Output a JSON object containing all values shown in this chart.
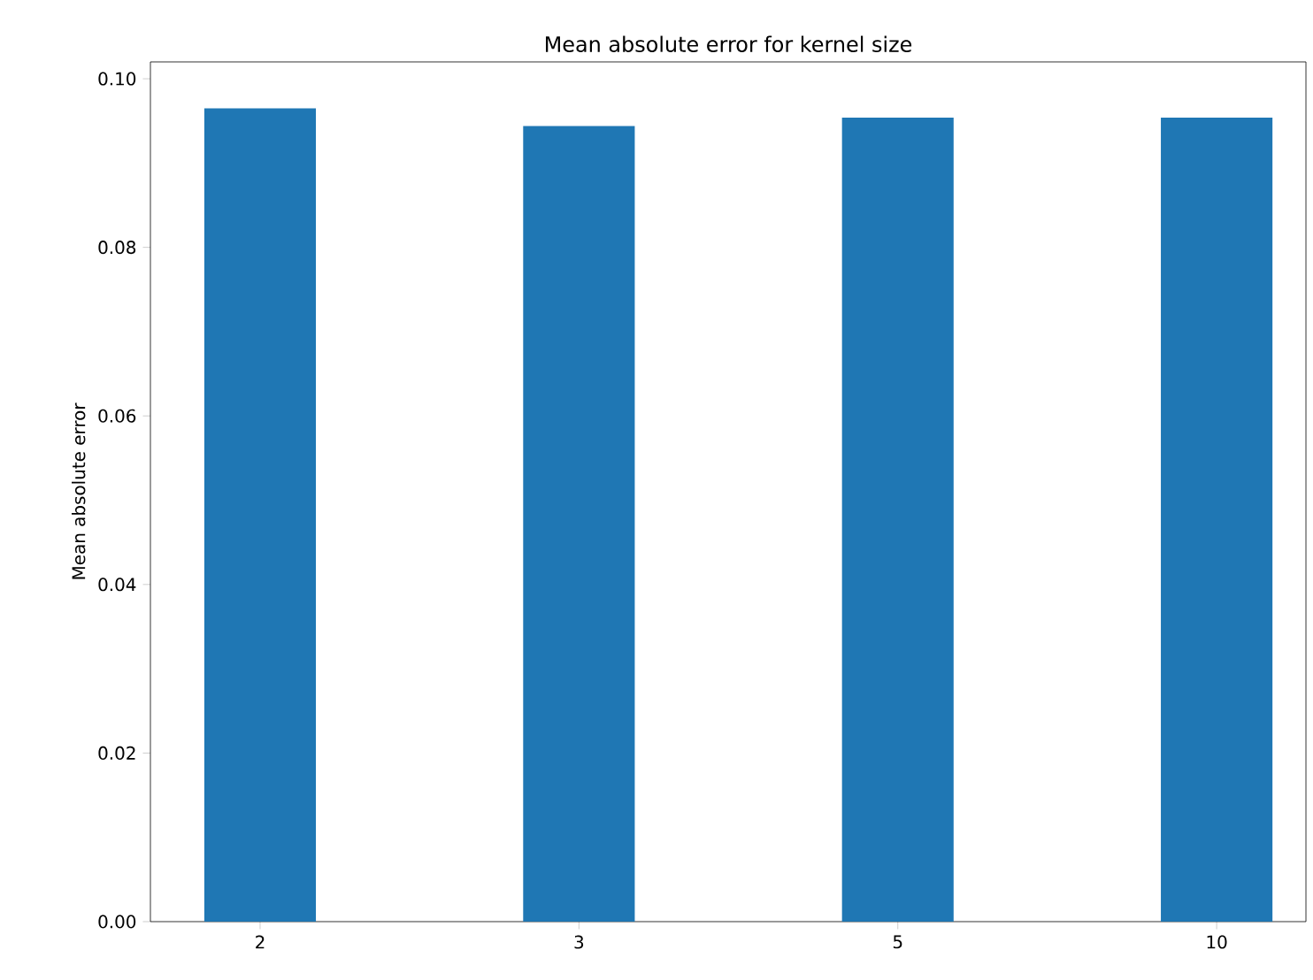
{
  "chart_data": {
    "type": "bar",
    "title": "Mean absolute error for kernel size",
    "ylabel": "Mean absolute error",
    "categories": [
      "2",
      "3",
      "5",
      "10"
    ],
    "values": [
      0.0965,
      0.0944,
      0.0954,
      0.0954
    ],
    "color": "#1f77b4",
    "ylim": [
      0,
      0.102
    ],
    "yticks": [
      {
        "value": 0,
        "label": "0.00"
      },
      {
        "value": 0.02,
        "label": "0.02"
      },
      {
        "value": 0.04,
        "label": "0.04"
      },
      {
        "value": 0.06,
        "label": "0.06"
      },
      {
        "value": 0.08,
        "label": "0.08"
      },
      {
        "value": 0.1,
        "label": "0.10"
      }
    ],
    "grid": false
  }
}
